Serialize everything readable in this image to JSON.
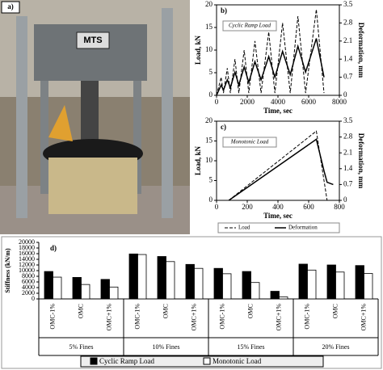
{
  "photo": {
    "label": "a)",
    "brand": "MTS"
  },
  "chart_data": [
    {
      "type": "line",
      "panel": "b)",
      "annotation": "Cyclic Ramp Load",
      "xlabel": "Time, sec",
      "ylabel": "Load, kN",
      "y2label": "Deformation, mm",
      "x": [
        0,
        300,
        450,
        700,
        900,
        1200,
        1450,
        1800,
        2100,
        2500,
        2900,
        3400,
        3800,
        4300,
        4800,
        5300,
        5800,
        6500,
        7000
      ],
      "xlim": [
        0,
        8000
      ],
      "xticks": [
        0,
        2000,
        4000,
        6000,
        8000
      ],
      "ylim": [
        0,
        20
      ],
      "yticks": [
        0,
        5,
        10,
        15,
        20
      ],
      "y2lim": [
        0,
        3.5
      ],
      "y2ticks": [
        0,
        0.7,
        1.4,
        2.1,
        2.8,
        3.5
      ],
      "series": [
        {
          "color": "#000",
          "dashed": true,
          "values": [
            0,
            4,
            0.5,
            6,
            0.5,
            8,
            0.5,
            10,
            0.5,
            12,
            0.5,
            14,
            0.5,
            16,
            0.5,
            17.5,
            0.5,
            19,
            0.5
          ]
        },
        {
          "color": "#000",
          "dashed": false,
          "axis": "y2",
          "values": [
            0,
            0.4,
            0.2,
            0.6,
            0.3,
            0.9,
            0.4,
            1.1,
            0.5,
            1.3,
            0.6,
            1.5,
            0.7,
            1.7,
            0.8,
            1.9,
            0.9,
            2.2,
            0.7
          ]
        }
      ]
    },
    {
      "type": "line",
      "panel": "c)",
      "annotation": "Monotonic Load",
      "xlabel": "Time, sec",
      "ylabel": "Load, kN",
      "y2label": "Deformation, mm",
      "x": [
        80,
        650,
        700,
        720,
        760
      ],
      "xlim": [
        0,
        800
      ],
      "xticks": [
        0,
        200,
        400,
        600,
        800
      ],
      "ylim": [
        0,
        20
      ],
      "yticks": [
        0,
        5,
        10,
        15,
        20
      ],
      "y2lim": [
        0,
        3.5
      ],
      "y2ticks": [
        0,
        0.7,
        1.4,
        2.1,
        2.8,
        3.5
      ],
      "series": [
        {
          "name": "Load",
          "color": "#000",
          "dashed": true,
          "values": [
            0,
            17.5,
            5,
            0,
            null
          ]
        },
        {
          "name": "Deformation",
          "color": "#000",
          "dashed": false,
          "axis": "y2",
          "values": [
            0,
            2.7,
            1.3,
            0.8,
            0.7
          ]
        }
      ]
    },
    {
      "type": "bar",
      "panel": "d)",
      "ylabel": "Stiffness (kN/m)",
      "categories": [
        "OMC-1%",
        "OMC",
        "OMC+1%",
        "OMC-1%",
        "OMC",
        "OMC+1%",
        "OMC-1%",
        "OMC",
        "OMC+1%",
        "OMC-1%",
        "OMC",
        "OMC+1%"
      ],
      "groups": [
        "5% Fines",
        "10% Fines",
        "15% Fines",
        "20% Fines"
      ],
      "group_size": 3,
      "ylim": [
        0,
        20000
      ],
      "yticks": [
        0,
        2000,
        4000,
        6000,
        8000,
        10000,
        12000,
        14000,
        16000,
        18000,
        20000
      ],
      "series": [
        {
          "name": "Cyclic Ramp Load",
          "color": "#000",
          "values": [
            9700,
            7600,
            6900,
            15900,
            15000,
            12200,
            10800,
            9700,
            2700,
            12300,
            12000,
            11800
          ]
        },
        {
          "name": "Monotonic Load",
          "color": "#fff",
          "values": [
            7700,
            5100,
            4200,
            15700,
            13200,
            10800,
            8900,
            5800,
            700,
            10200,
            9500,
            9000
          ]
        }
      ]
    }
  ]
}
